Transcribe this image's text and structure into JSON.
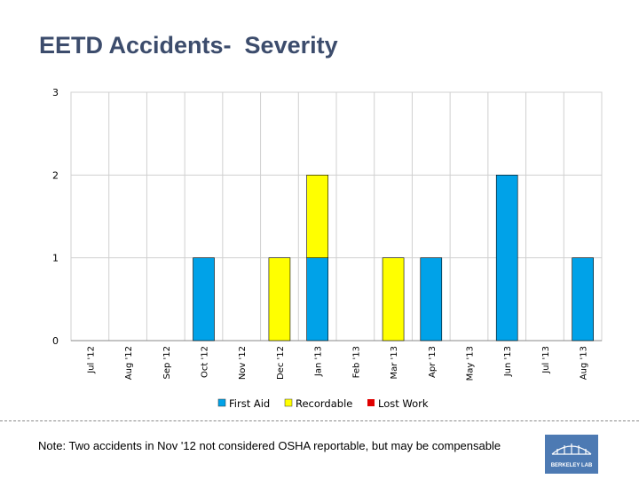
{
  "title": "EETD Accidents-  Severity",
  "note": "Note: Two accidents in Nov '12 not considered OSHA reportable, but may be compensable",
  "logo": {
    "text": "BERKELEY LAB"
  },
  "colors": {
    "first_aid": "#00a2e8",
    "recordable": "#ffff00",
    "lost_work": "#e00000",
    "grid": "#d0d0d0",
    "axis": "#888888"
  },
  "chart_data": {
    "type": "bar",
    "stacked": true,
    "categories": [
      "Jul '12",
      "Aug '12",
      "Sep '12",
      "Oct '12",
      "Nov '12",
      "Dec '12",
      "Jan '13",
      "Feb '13",
      "Mar '13",
      "Apr '13",
      "May '13",
      "Jun '13",
      "Jul '13",
      "Aug '13"
    ],
    "series": [
      {
        "name": "First Aid",
        "color": "#00a2e8",
        "values": [
          0,
          0,
          0,
          1,
          0,
          0,
          1,
          0,
          0,
          1,
          0,
          2,
          0,
          1
        ]
      },
      {
        "name": "Recordable",
        "color": "#ffff00",
        "values": [
          0,
          0,
          0,
          0,
          0,
          1,
          1,
          0,
          1,
          0,
          0,
          0,
          0,
          0
        ]
      },
      {
        "name": "Lost Work",
        "color": "#e00000",
        "values": [
          0,
          0,
          0,
          0,
          0,
          0,
          0,
          0,
          0,
          0,
          0,
          0,
          0,
          0
        ]
      }
    ],
    "ylim": [
      0,
      3
    ],
    "yticks": [
      0,
      1,
      2,
      3
    ],
    "grid": true,
    "legend": "bottom"
  }
}
